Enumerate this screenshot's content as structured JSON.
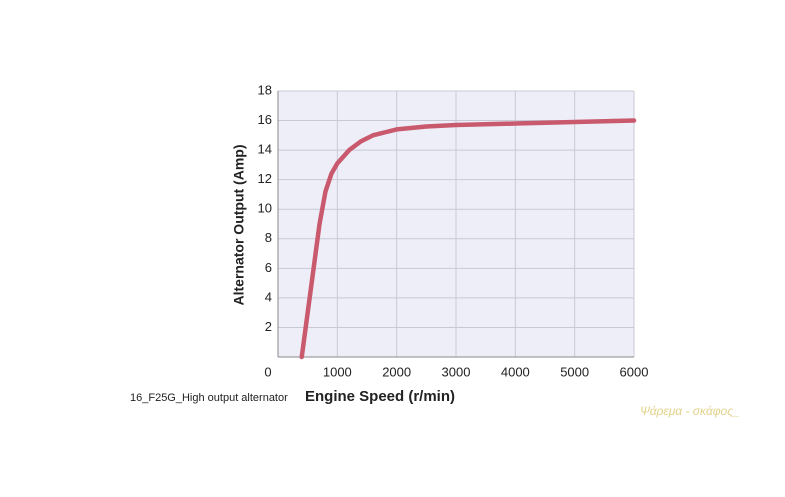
{
  "chart_data": {
    "type": "line",
    "x_label": "Engine Speed (r/min)",
    "y_label": "Alternator Output (Amp)",
    "caption": "16_F25G_High output alternator",
    "watermark": "Ψάρεμα - σκάφος_",
    "x": [
      400,
      500,
      600,
      700,
      800,
      900,
      1000,
      1200,
      1400,
      1600,
      1800,
      2000,
      2500,
      3000,
      4000,
      5000,
      6000
    ],
    "series": [
      {
        "name": "Alternator output",
        "color": "#c95a6e",
        "values": [
          0,
          3,
          6,
          9,
          11.2,
          12.4,
          13.1,
          14,
          14.6,
          15,
          15.2,
          15.4,
          15.6,
          15.7,
          15.8,
          15.9,
          16
        ]
      }
    ],
    "xlim": [
      0,
      6000
    ],
    "xticks": [
      0,
      1000,
      2000,
      3000,
      4000,
      5000,
      6000
    ],
    "ylim": [
      0,
      18
    ],
    "yticks": [
      2,
      4,
      6,
      8,
      10,
      12,
      14,
      16,
      18
    ],
    "grid": true,
    "plot_background": "#eeeef8"
  }
}
